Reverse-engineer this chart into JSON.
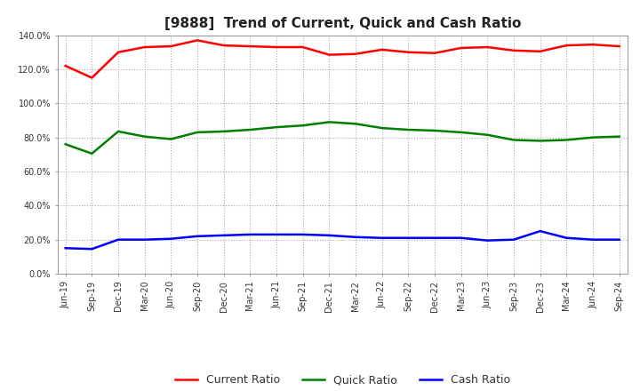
{
  "title": "[9888]  Trend of Current, Quick and Cash Ratio",
  "labels": [
    "Jun-19",
    "Sep-19",
    "Dec-19",
    "Mar-20",
    "Jun-20",
    "Sep-20",
    "Dec-20",
    "Mar-21",
    "Jun-21",
    "Sep-21",
    "Dec-21",
    "Mar-22",
    "Jun-22",
    "Sep-22",
    "Dec-22",
    "Mar-23",
    "Jun-23",
    "Sep-23",
    "Dec-23",
    "Mar-24",
    "Jun-24",
    "Sep-24"
  ],
  "current_ratio": [
    122.0,
    115.0,
    130.0,
    133.0,
    133.5,
    137.0,
    134.0,
    133.5,
    133.0,
    133.0,
    128.5,
    129.0,
    131.5,
    130.0,
    129.5,
    132.5,
    133.0,
    131.0,
    130.5,
    134.0,
    134.5,
    133.5
  ],
  "quick_ratio": [
    76.0,
    70.5,
    83.5,
    80.5,
    79.0,
    83.0,
    83.5,
    84.5,
    86.0,
    87.0,
    89.0,
    88.0,
    85.5,
    84.5,
    84.0,
    83.0,
    81.5,
    78.5,
    78.0,
    78.5,
    80.0,
    80.5
  ],
  "cash_ratio": [
    15.0,
    14.5,
    20.0,
    20.0,
    20.5,
    22.0,
    22.5,
    23.0,
    23.0,
    23.0,
    22.5,
    21.5,
    21.0,
    21.0,
    21.0,
    21.0,
    19.5,
    20.0,
    25.0,
    21.0,
    20.0,
    20.0
  ],
  "current_color": "#FF0000",
  "quick_color": "#008000",
  "cash_color": "#0000FF",
  "ylim_min": 0.0,
  "ylim_max": 140.0,
  "yticks": [
    0.0,
    20.0,
    40.0,
    60.0,
    80.0,
    100.0,
    120.0,
    140.0
  ],
  "ytick_labels": [
    "0.0%",
    "20.0%",
    "40.0%",
    "60.0%",
    "80.0%",
    "100.0%",
    "120.0%",
    "140.0%"
  ],
  "legend_current": "Current Ratio",
  "legend_quick": "Quick Ratio",
  "legend_cash": "Cash Ratio",
  "bg_color": "#FFFFFF",
  "plot_bg_color": "#FFFFFF",
  "line_width": 1.8,
  "title_fontsize": 11,
  "tick_fontsize": 7,
  "legend_fontsize": 9,
  "grid_color": "#AAAAAA",
  "grid_linestyle": ":"
}
